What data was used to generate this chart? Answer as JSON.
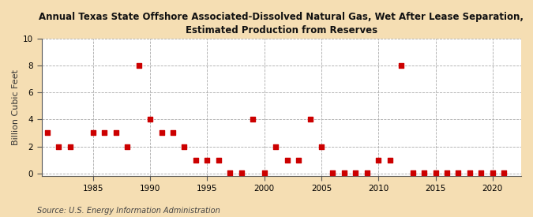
{
  "title": "Annual Texas State Offshore Associated-Dissolved Natural Gas, Wet After Lease Separation,\nEstimated Production from Reserves",
  "ylabel": "Billion Cubic Feet",
  "source": "Source: U.S. Energy Information Administration",
  "background_color": "#f5deb3",
  "plot_bg_color": "#ffffff",
  "marker_color": "#cc0000",
  "marker_size": 18,
  "marker_shape": "s",
  "xlim": [
    1980.5,
    2022.5
  ],
  "ylim": [
    -0.2,
    10
  ],
  "yticks": [
    0,
    2,
    4,
    6,
    8,
    10
  ],
  "xticks": [
    1985,
    1990,
    1995,
    2000,
    2005,
    2010,
    2015,
    2020
  ],
  "years": [
    1981,
    1982,
    1983,
    1985,
    1986,
    1987,
    1988,
    1989,
    1990,
    1991,
    1992,
    1993,
    1994,
    1995,
    1996,
    1997,
    1998,
    1999,
    2000,
    2001,
    2002,
    2003,
    2004,
    2005,
    2006,
    2007,
    2008,
    2009,
    2010,
    2011,
    2012,
    2013,
    2014,
    2015,
    2016,
    2017,
    2018,
    2019,
    2020,
    2021
  ],
  "values": [
    3,
    2,
    2,
    3,
    3,
    3,
    2,
    8,
    4,
    3,
    3,
    2,
    1,
    1,
    1,
    0.05,
    0.05,
    4,
    0.05,
    2,
    1,
    1,
    4,
    2,
    0.05,
    0.05,
    0.05,
    0.05,
    1,
    1,
    8,
    0.05,
    0.05,
    0.05,
    0.05,
    0.05,
    0.05,
    0.05,
    0.05,
    0.05
  ]
}
